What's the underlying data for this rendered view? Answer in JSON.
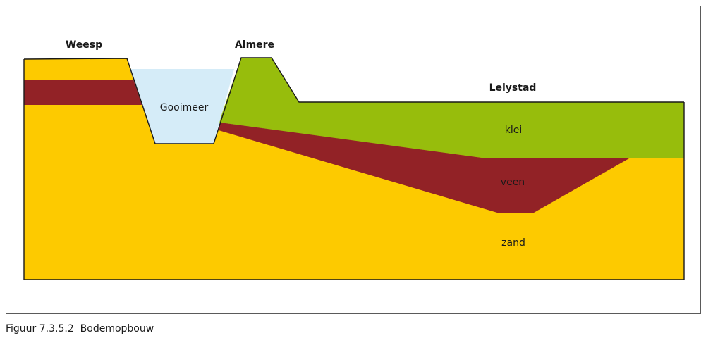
{
  "diagram": {
    "labels": {
      "weesp": "Weesp",
      "almere": "Almere",
      "lelystad": "Lelystad",
      "gooimeer": "Gooimeer",
      "klei": "klei",
      "veen": "veen",
      "zand": "zand"
    },
    "colors": {
      "zand": "#fdca00",
      "veen": "#922226",
      "klei": "#97bd0c",
      "water": "#d5ecf8",
      "outline": "#1a1a1a"
    }
  },
  "caption": {
    "number": "Figuur 7.3.5.2",
    "title": "Bodemopbouw"
  }
}
